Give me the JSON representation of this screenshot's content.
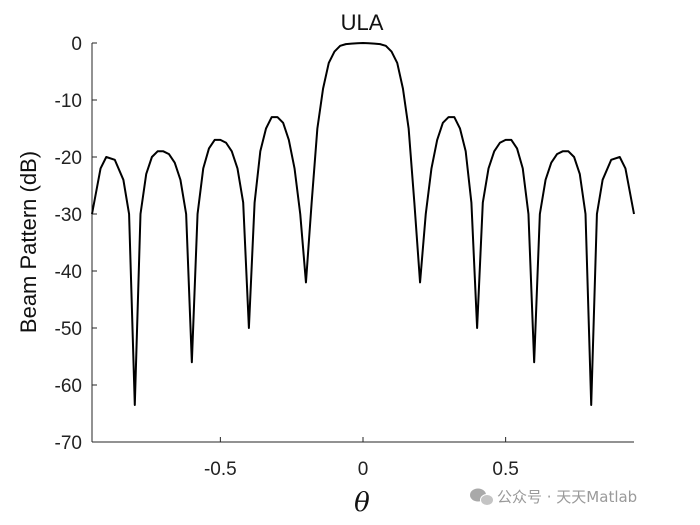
{
  "chart_data": {
    "type": "line",
    "title": "ULA",
    "xlabel": "θ",
    "ylabel": "Beam Pattern (dB)",
    "xlim": [
      -0.95,
      0.95
    ],
    "ylim": [
      -70,
      0
    ],
    "xticks": [
      -0.5,
      0,
      0.5
    ],
    "xtick_labels": [
      "-0.5",
      "0",
      "0.5"
    ],
    "yticks": [
      0,
      -10,
      -20,
      -30,
      -40,
      -50,
      -60,
      -70
    ],
    "ytick_labels": [
      "0",
      "-10",
      "-20",
      "-30",
      "-40",
      "-50",
      "-60",
      "-70"
    ],
    "grid": false,
    "line_color": "#000000",
    "series": [
      {
        "x": [
          -0.95,
          -0.92,
          -0.9,
          -0.87,
          -0.84,
          -0.82,
          -0.8,
          -0.78,
          -0.76,
          -0.74,
          -0.72,
          -0.7,
          -0.68,
          -0.66,
          -0.64,
          -0.62,
          -0.6,
          -0.58,
          -0.56,
          -0.54,
          -0.52,
          -0.5,
          -0.48,
          -0.46,
          -0.44,
          -0.42,
          -0.4,
          -0.38,
          -0.36,
          -0.34,
          -0.32,
          -0.3,
          -0.28,
          -0.26,
          -0.24,
          -0.22,
          -0.2,
          -0.18,
          -0.16,
          -0.14,
          -0.12,
          -0.1,
          -0.08,
          -0.06,
          -0.04,
          -0.02,
          0.0,
          0.02,
          0.04,
          0.06,
          0.08,
          0.1,
          0.12,
          0.14,
          0.16,
          0.18,
          0.2,
          0.22,
          0.24,
          0.26,
          0.28,
          0.3,
          0.32,
          0.34,
          0.36,
          0.38,
          0.4,
          0.42,
          0.44,
          0.46,
          0.48,
          0.5,
          0.52,
          0.54,
          0.56,
          0.58,
          0.6,
          0.62,
          0.64,
          0.66,
          0.68,
          0.7,
          0.72,
          0.74,
          0.76,
          0.78,
          0.8,
          0.82,
          0.84,
          0.87,
          0.9,
          0.92,
          0.95
        ],
        "y": [
          -30,
          -22,
          -20,
          -20.5,
          -24,
          -30,
          -63.5,
          -30,
          -23,
          -20,
          -19,
          -19,
          -19.5,
          -21,
          -24,
          -30,
          -56,
          -30,
          -22,
          -18.5,
          -17,
          -17,
          -17.5,
          -19,
          -22,
          -28,
          -50,
          -28,
          -19,
          -15,
          -13,
          -13,
          -14,
          -17,
          -22,
          -30,
          -42,
          -28,
          -15,
          -8,
          -3.5,
          -1.5,
          -0.5,
          -0.2,
          -0.1,
          -0.05,
          0,
          -0.05,
          -0.1,
          -0.2,
          -0.5,
          -1.5,
          -3.5,
          -8,
          -15,
          -28,
          -42,
          -30,
          -22,
          -17,
          -14,
          -13,
          -13,
          -15,
          -19,
          -28,
          -50,
          -28,
          -22,
          -19,
          -17.5,
          -17,
          -17,
          -18.5,
          -22,
          -30,
          -56,
          -30,
          -24,
          -21,
          -19.5,
          -19,
          -19,
          -20,
          -23,
          -30,
          -63.5,
          -30,
          -24,
          -20.5,
          -20,
          -22,
          -30
        ]
      }
    ]
  },
  "watermark": {
    "text": "公众号 · 天天Matlab",
    "icon": "wechat-icon"
  }
}
